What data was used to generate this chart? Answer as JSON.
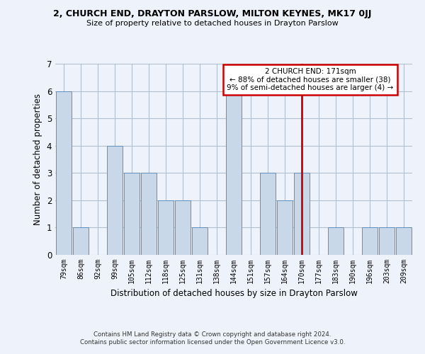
{
  "title": "2, CHURCH END, DRAYTON PARSLOW, MILTON KEYNES, MK17 0JJ",
  "subtitle": "Size of property relative to detached houses in Drayton Parslow",
  "xlabel": "Distribution of detached houses by size in Drayton Parslow",
  "ylabel": "Number of detached properties",
  "categories": [
    "79sqm",
    "86sqm",
    "92sqm",
    "99sqm",
    "105sqm",
    "112sqm",
    "118sqm",
    "125sqm",
    "131sqm",
    "138sqm",
    "144sqm",
    "151sqm",
    "157sqm",
    "164sqm",
    "170sqm",
    "177sqm",
    "183sqm",
    "190sqm",
    "196sqm",
    "203sqm",
    "209sqm"
  ],
  "values": [
    6,
    1,
    0,
    4,
    3,
    3,
    2,
    2,
    1,
    0,
    6,
    0,
    3,
    2,
    3,
    0,
    1,
    0,
    1,
    1,
    1
  ],
  "highlight_index": 14,
  "bar_color_normal": "#c8d8e8",
  "bar_edge_color": "#6090c0",
  "highlight_line_color": "#cc0000",
  "ylim": [
    0,
    7
  ],
  "yticks": [
    0,
    1,
    2,
    3,
    4,
    5,
    6,
    7
  ],
  "annotation_text": "2 CHURCH END: 171sqm\n← 88% of detached houses are smaller (38)\n9% of semi-detached houses are larger (4) →",
  "annotation_box_color": "#cc0000",
  "footer_line1": "Contains HM Land Registry data © Crown copyright and database right 2024.",
  "footer_line2": "Contains public sector information licensed under the Open Government Licence v3.0.",
  "grid_color": "#b0c0d0",
  "background_color": "#eef2fb"
}
